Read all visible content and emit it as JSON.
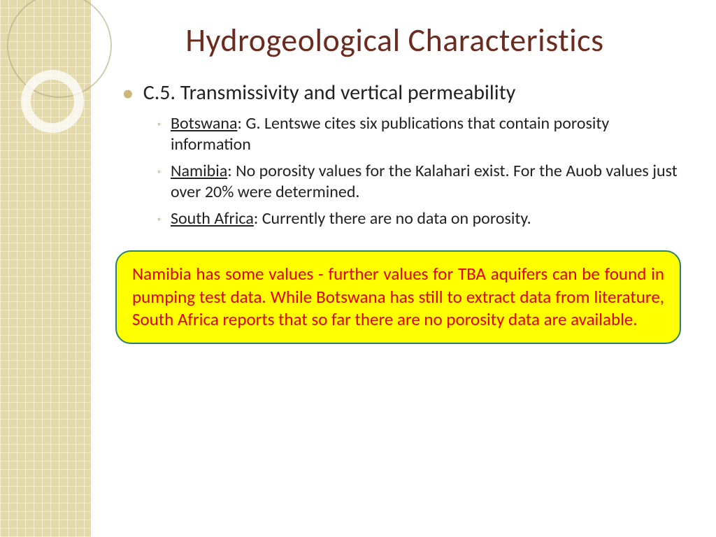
{
  "slide": {
    "title": "Hydrogeological Characteristics",
    "main_bullet": "C.5.  Transmissivity and vertical permeability",
    "sub_bullets": [
      {
        "country": "Botswana",
        "text": ":  G. Lentswe cites six publications that contain porosity information"
      },
      {
        "country": "Namibia",
        "text": ": No porosity values for the Kalahari exist. For the Auob values just over 20% were determined."
      },
      {
        "country": "South Africa",
        "text": ":  Currently there are no data on porosity."
      }
    ],
    "callout": "Namibia has some values - further values for TBA aquifers can be found in pumping test data. While Botswana has still to extract data from literature, South Africa reports that so far there are no porosity data are available."
  },
  "style": {
    "title_color": "#6b2c1f",
    "title_fontsize": 46,
    "body_fontsize_main": 30,
    "body_fontsize_sub": 24,
    "bullet_color_main": "#cbb87a",
    "bullet_color_sub": "#aaa08a",
    "callout_bg": "#ffff00",
    "callout_border": "#2a8070",
    "callout_text_color": "#e00000",
    "callout_fontsize": 25,
    "sidebar_color": "#e3d9ab",
    "background_color": "#ffffff"
  }
}
